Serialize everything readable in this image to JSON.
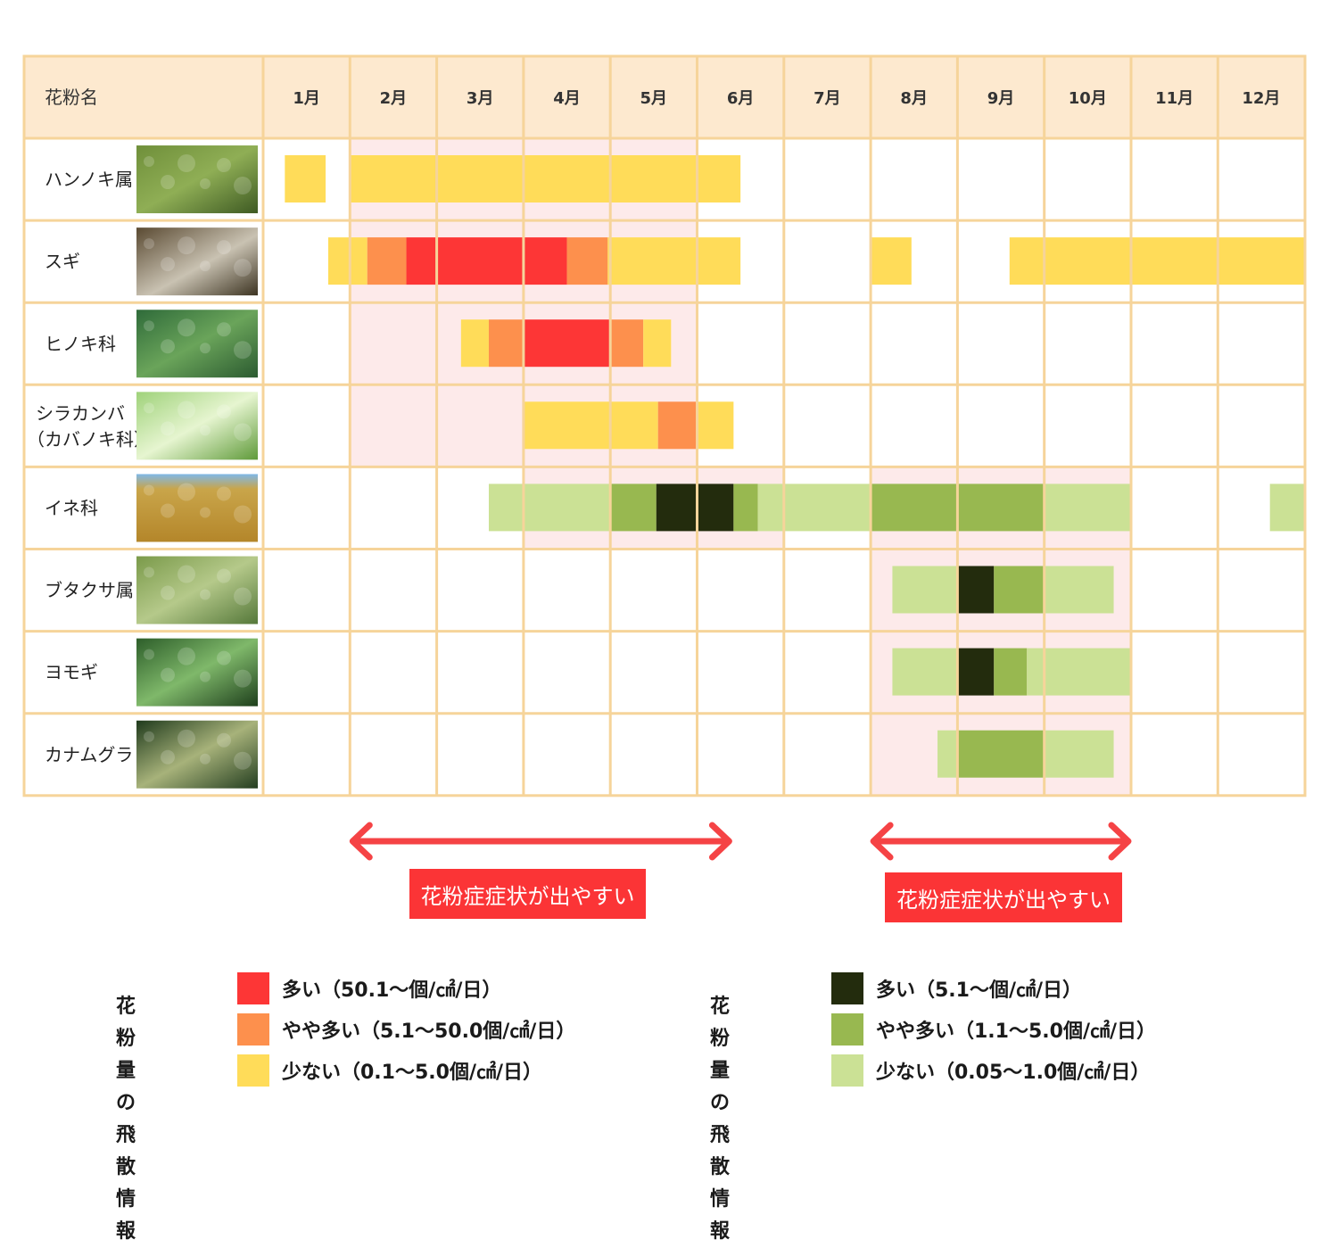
{
  "colors": {
    "header_bg": "#fde9cf",
    "grid_line": "#f6d49a",
    "season_highlight": "#fdeaea",
    "arrow": "#f54345",
    "label_bg": "#fb3436",
    "tree_high": "#fd3636",
    "tree_mid": "#fd904d",
    "tree_low": "#ffdc59",
    "grass_high": "#232c0d",
    "grass_mid": "#98b850",
    "grass_low": "#cbe195"
  },
  "chart_data": {
    "type": "gantt",
    "header_label": "花粉名",
    "months": [
      "1月",
      "2月",
      "3月",
      "4月",
      "5月",
      "6月",
      "7月",
      "8月",
      "9月",
      "10月",
      "11月",
      "12月"
    ],
    "season_highlights": [
      {
        "from_month": 2,
        "to_month": 5,
        "rows": [
          0,
          3
        ]
      },
      {
        "from_month": 4,
        "to_month": 6,
        "rows": [
          4,
          4
        ]
      },
      {
        "from_month": 8,
        "to_month": 10,
        "rows": [
          4,
          7
        ]
      }
    ],
    "rows": [
      {
        "name": [
          "ハンノキ属"
        ],
        "photo": "alder-photo",
        "segments": [
          {
            "start": 1.25,
            "end": 1.72,
            "level": "tree_low"
          },
          {
            "start": 2.0,
            "end": 6.5,
            "level": "tree_low"
          }
        ]
      },
      {
        "name": [
          "スギ"
        ],
        "photo": "cedar-photo",
        "segments": [
          {
            "start": 1.75,
            "end": 2.2,
            "level": "tree_low"
          },
          {
            "start": 2.2,
            "end": 2.65,
            "level": "tree_mid"
          },
          {
            "start": 2.65,
            "end": 4.5,
            "level": "tree_high"
          },
          {
            "start": 4.5,
            "end": 4.97,
            "level": "tree_mid"
          },
          {
            "start": 4.97,
            "end": 6.5,
            "level": "tree_low"
          },
          {
            "start": 8.0,
            "end": 8.47,
            "level": "tree_low"
          },
          {
            "start": 9.6,
            "end": 12.99,
            "level": "tree_low"
          }
        ]
      },
      {
        "name": [
          "ヒノキ科"
        ],
        "photo": "cypress-photo",
        "segments": [
          {
            "start": 3.28,
            "end": 3.6,
            "level": "tree_low"
          },
          {
            "start": 3.6,
            "end": 4.0,
            "level": "tree_mid"
          },
          {
            "start": 4.0,
            "end": 5.0,
            "level": "tree_high"
          },
          {
            "start": 5.0,
            "end": 5.38,
            "level": "tree_mid"
          },
          {
            "start": 5.38,
            "end": 5.7,
            "level": "tree_low"
          }
        ]
      },
      {
        "name": [
          "シラカンバ",
          "（カバノキ科）"
        ],
        "photo": "birch-photo",
        "segments": [
          {
            "start": 4.0,
            "end": 5.55,
            "level": "tree_low"
          },
          {
            "start": 5.55,
            "end": 6.0,
            "level": "tree_mid"
          },
          {
            "start": 6.0,
            "end": 6.42,
            "level": "tree_low"
          }
        ]
      },
      {
        "name": [
          "イネ科"
        ],
        "photo": "grass-photo",
        "segments": [
          {
            "start": 3.6,
            "end": 5.0,
            "level": "grass_low"
          },
          {
            "start": 5.0,
            "end": 5.53,
            "level": "grass_mid"
          },
          {
            "start": 5.53,
            "end": 6.42,
            "level": "grass_high"
          },
          {
            "start": 6.42,
            "end": 6.7,
            "level": "grass_mid"
          },
          {
            "start": 6.7,
            "end": 8.0,
            "level": "grass_low"
          },
          {
            "start": 8.0,
            "end": 10.0,
            "level": "grass_mid"
          },
          {
            "start": 10.0,
            "end": 11.0,
            "level": "grass_low"
          },
          {
            "start": 12.6,
            "end": 12.99,
            "level": "grass_low"
          }
        ]
      },
      {
        "name": [
          "ブタクサ属"
        ],
        "photo": "ragweed-photo",
        "segments": [
          {
            "start": 8.25,
            "end": 9.0,
            "level": "grass_low"
          },
          {
            "start": 9.0,
            "end": 9.42,
            "level": "grass_high"
          },
          {
            "start": 9.42,
            "end": 10.0,
            "level": "grass_mid"
          },
          {
            "start": 10.0,
            "end": 10.8,
            "level": "grass_low"
          }
        ]
      },
      {
        "name": [
          "ヨモギ"
        ],
        "photo": "mugwort-photo",
        "segments": [
          {
            "start": 8.25,
            "end": 9.0,
            "level": "grass_low"
          },
          {
            "start": 9.0,
            "end": 9.42,
            "level": "grass_high"
          },
          {
            "start": 9.42,
            "end": 9.8,
            "level": "grass_mid"
          },
          {
            "start": 9.8,
            "end": 11.0,
            "level": "grass_low"
          }
        ]
      },
      {
        "name": [
          "カナムグラ"
        ],
        "photo": "hop-photo",
        "segments": [
          {
            "start": 8.77,
            "end": 9.0,
            "level": "grass_low"
          },
          {
            "start": 9.0,
            "end": 10.0,
            "level": "grass_mid"
          },
          {
            "start": 10.0,
            "end": 10.8,
            "level": "grass_low"
          }
        ]
      }
    ],
    "symptom_periods": [
      {
        "from_month": 2.0,
        "to_month": 6.4,
        "label": "花粉症症状が出やすい"
      },
      {
        "from_month": 8.0,
        "to_month": 11.0,
        "label": "花粉症症状が出やすい"
      }
    ]
  },
  "legend_tree": {
    "title_line1": "花粉量の",
    "title_line2": "飛散情報",
    "items": [
      {
        "level": "tree_high",
        "label": "多い（50.1〜個/㎠/日）"
      },
      {
        "level": "tree_mid",
        "label": "やや多い（5.1〜50.0個/㎠/日）"
      },
      {
        "level": "tree_low",
        "label": "少ない（0.1〜5.0個/㎠/日）"
      }
    ]
  },
  "legend_grass": {
    "title_line1": "花粉量の",
    "title_line2": "飛散情報",
    "items": [
      {
        "level": "grass_high",
        "label": "多い（5.1〜個/㎠/日）"
      },
      {
        "level": "grass_mid",
        "label": "やや多い（1.1〜5.0個/㎠/日）"
      },
      {
        "level": "grass_low",
        "label": "少ない（0.05〜1.0個/㎠/日）"
      }
    ]
  }
}
